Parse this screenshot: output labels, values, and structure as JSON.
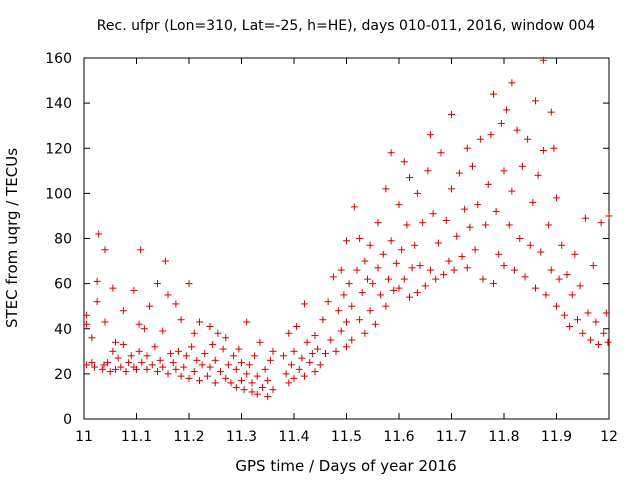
{
  "chart_data": {
    "type": "scatter",
    "title": "Rec. ufpr (Lon=310, Lat=-25, h=HE), days 010-011, 2016, window 004",
    "xlabel": "GPS time / Days of year 2016",
    "ylabel": "STEC from uqrg / TECUs",
    "xlim": [
      11,
      12
    ],
    "ylim": [
      0,
      160
    ],
    "xticks": [
      11,
      11.1,
      11.2,
      11.3,
      11.4,
      11.5,
      11.6,
      11.7,
      11.8,
      11.9,
      12
    ],
    "xtick_labels": [
      "11",
      "11.1",
      "11.2",
      "11.3",
      "11.4",
      "11.5",
      "11.6",
      "11.7",
      "11.8",
      "11.9",
      "12"
    ],
    "yticks": [
      0,
      20,
      40,
      60,
      80,
      100,
      120,
      140,
      160
    ],
    "ytick_labels": [
      "0",
      "20",
      "40",
      "60",
      "80",
      "100",
      "120",
      "140",
      "160"
    ],
    "grid": false,
    "marker": "+",
    "marker_color": "#d40000",
    "series": [
      {
        "name": "STEC",
        "points": [
          [
            11.005,
            24
          ],
          [
            11.005,
            46
          ],
          [
            11.005,
            42
          ],
          [
            11.015,
            25
          ],
          [
            11.015,
            36
          ],
          [
            11.02,
            23
          ],
          [
            11.025,
            52
          ],
          [
            11.025,
            61
          ],
          [
            11.028,
            82
          ],
          [
            11.035,
            22
          ],
          [
            11.038,
            24
          ],
          [
            11.04,
            43
          ],
          [
            11.04,
            75
          ],
          [
            11.045,
            25
          ],
          [
            11.05,
            21
          ],
          [
            11.055,
            30
          ],
          [
            11.055,
            58
          ],
          [
            11.06,
            22
          ],
          [
            11.06,
            34
          ],
          [
            11.065,
            27
          ],
          [
            11.07,
            23
          ],
          [
            11.075,
            33
          ],
          [
            11.075,
            48
          ],
          [
            11.08,
            21
          ],
          [
            11.085,
            25
          ],
          [
            11.09,
            28
          ],
          [
            11.095,
            23
          ],
          [
            11.095,
            57
          ],
          [
            11.1,
            22
          ],
          [
            11.105,
            30
          ],
          [
            11.105,
            42
          ],
          [
            11.108,
            75
          ],
          [
            11.11,
            25
          ],
          [
            11.115,
            40
          ],
          [
            11.12,
            22
          ],
          [
            11.12,
            28
          ],
          [
            11.125,
            50
          ],
          [
            11.13,
            24
          ],
          [
            11.135,
            32
          ],
          [
            11.14,
            21
          ],
          [
            11.14,
            60
          ],
          [
            11.145,
            26
          ],
          [
            11.15,
            23
          ],
          [
            11.15,
            39
          ],
          [
            11.155,
            70
          ],
          [
            11.16,
            20
          ],
          [
            11.16,
            55
          ],
          [
            11.165,
            29
          ],
          [
            11.17,
            25
          ],
          [
            11.175,
            22
          ],
          [
            11.175,
            51
          ],
          [
            11.18,
            30
          ],
          [
            11.185,
            19
          ],
          [
            11.185,
            44
          ],
          [
            11.19,
            23
          ],
          [
            11.195,
            28
          ],
          [
            11.2,
            18
          ],
          [
            11.2,
            60
          ],
          [
            11.205,
            32
          ],
          [
            11.21,
            21
          ],
          [
            11.21,
            38
          ],
          [
            11.215,
            26
          ],
          [
            11.22,
            17
          ],
          [
            11.22,
            43
          ],
          [
            11.225,
            24
          ],
          [
            11.23,
            29
          ],
          [
            11.235,
            19
          ],
          [
            11.24,
            41
          ],
          [
            11.24,
            23
          ],
          [
            11.245,
            33
          ],
          [
            11.25,
            16
          ],
          [
            11.25,
            26
          ],
          [
            11.255,
            38
          ],
          [
            11.26,
            21
          ],
          [
            11.265,
            31
          ],
          [
            11.27,
            18
          ],
          [
            11.27,
            36
          ],
          [
            11.275,
            24
          ],
          [
            11.28,
            16
          ],
          [
            11.285,
            28
          ],
          [
            11.29,
            14
          ],
          [
            11.29,
            22
          ],
          [
            11.295,
            31
          ],
          [
            11.3,
            17
          ],
          [
            11.3,
            25
          ],
          [
            11.305,
            13
          ],
          [
            11.31,
            20
          ],
          [
            11.31,
            43
          ],
          [
            11.315,
            24
          ],
          [
            11.32,
            12
          ],
          [
            11.32,
            16
          ],
          [
            11.325,
            28
          ],
          [
            11.33,
            11
          ],
          [
            11.33,
            19
          ],
          [
            11.335,
            34
          ],
          [
            11.34,
            14
          ],
          [
            11.345,
            22
          ],
          [
            11.35,
            10
          ],
          [
            11.35,
            17
          ],
          [
            11.355,
            26
          ],
          [
            11.36,
            13
          ],
          [
            11.36,
            30
          ],
          [
            11.38,
            28
          ],
          [
            11.385,
            20
          ],
          [
            11.39,
            16
          ],
          [
            11.39,
            38
          ],
          [
            11.395,
            24
          ],
          [
            11.4,
            18
          ],
          [
            11.4,
            30
          ],
          [
            11.405,
            41
          ],
          [
            11.41,
            22
          ],
          [
            11.415,
            27
          ],
          [
            11.42,
            19
          ],
          [
            11.42,
            51
          ],
          [
            11.425,
            34
          ],
          [
            11.43,
            25
          ],
          [
            11.435,
            29
          ],
          [
            11.44,
            21
          ],
          [
            11.44,
            37
          ],
          [
            11.445,
            31
          ],
          [
            11.45,
            24
          ],
          [
            11.455,
            44
          ],
          [
            11.46,
            29
          ],
          [
            11.465,
            52
          ],
          [
            11.47,
            35
          ],
          [
            11.475,
            63
          ],
          [
            11.48,
            30
          ],
          [
            11.485,
            48
          ],
          [
            11.49,
            39
          ],
          [
            11.49,
            66
          ],
          [
            11.495,
            55
          ],
          [
            11.5,
            32
          ],
          [
            11.5,
            43
          ],
          [
            11.5,
            79
          ],
          [
            11.505,
            60
          ],
          [
            11.51,
            35
          ],
          [
            11.51,
            50
          ],
          [
            11.515,
            94
          ],
          [
            11.52,
            66
          ],
          [
            11.525,
            44
          ],
          [
            11.525,
            80
          ],
          [
            11.53,
            56
          ],
          [
            11.535,
            38
          ],
          [
            11.535,
            70
          ],
          [
            11.54,
            62
          ],
          [
            11.545,
            48
          ],
          [
            11.545,
            77
          ],
          [
            11.55,
            60
          ],
          [
            11.555,
            42
          ],
          [
            11.56,
            67
          ],
          [
            11.56,
            87
          ],
          [
            11.565,
            55
          ],
          [
            11.57,
            73
          ],
          [
            11.575,
            50
          ],
          [
            11.575,
            102
          ],
          [
            11.58,
            62
          ],
          [
            11.585,
            79
          ],
          [
            11.585,
            118
          ],
          [
            11.59,
            57
          ],
          [
            11.595,
            69
          ],
          [
            11.6,
            95
          ],
          [
            11.6,
            58
          ],
          [
            11.605,
            75
          ],
          [
            11.61,
            62
          ],
          [
            11.61,
            114
          ],
          [
            11.615,
            86
          ],
          [
            11.62,
            54
          ],
          [
            11.62,
            107
          ],
          [
            11.625,
            67
          ],
          [
            11.63,
            77
          ],
          [
            11.635,
            56
          ],
          [
            11.635,
            100
          ],
          [
            11.64,
            68
          ],
          [
            11.645,
            87
          ],
          [
            11.65,
            59
          ],
          [
            11.655,
            110
          ],
          [
            11.66,
            66
          ],
          [
            11.66,
            126
          ],
          [
            11.665,
            91
          ],
          [
            11.67,
            62
          ],
          [
            11.675,
            78
          ],
          [
            11.68,
            118
          ],
          [
            11.685,
            64
          ],
          [
            11.69,
            88
          ],
          [
            11.695,
            70
          ],
          [
            11.7,
            135
          ],
          [
            11.7,
            102
          ],
          [
            11.705,
            66
          ],
          [
            11.71,
            81
          ],
          [
            11.715,
            109
          ],
          [
            11.72,
            72
          ],
          [
            11.725,
            93
          ],
          [
            11.73,
            120
          ],
          [
            11.73,
            67
          ],
          [
            11.735,
            85
          ],
          [
            11.74,
            112
          ],
          [
            11.745,
            75
          ],
          [
            11.75,
            95
          ],
          [
            11.755,
            124
          ],
          [
            11.76,
            62
          ],
          [
            11.765,
            86
          ],
          [
            11.77,
            104
          ],
          [
            11.775,
            126
          ],
          [
            11.78,
            60
          ],
          [
            11.78,
            144
          ],
          [
            11.785,
            92
          ],
          [
            11.79,
            73
          ],
          [
            11.795,
            131
          ],
          [
            11.8,
            68
          ],
          [
            11.8,
            110
          ],
          [
            11.805,
            137
          ],
          [
            11.81,
            86
          ],
          [
            11.815,
            149
          ],
          [
            11.815,
            101
          ],
          [
            11.82,
            66
          ],
          [
            11.825,
            128
          ],
          [
            11.83,
            80
          ],
          [
            11.835,
            112
          ],
          [
            11.84,
            63
          ],
          [
            11.845,
            124
          ],
          [
            11.85,
            77
          ],
          [
            11.855,
            96
          ],
          [
            11.86,
            141
          ],
          [
            11.86,
            58
          ],
          [
            11.865,
            108
          ],
          [
            11.87,
            74
          ],
          [
            11.875,
            159
          ],
          [
            11.875,
            119
          ],
          [
            11.88,
            55
          ],
          [
            11.885,
            86
          ],
          [
            11.89,
            136
          ],
          [
            11.89,
            66
          ],
          [
            11.895,
            120
          ],
          [
            11.9,
            50
          ],
          [
            11.9,
            98
          ],
          [
            11.905,
            62
          ],
          [
            11.91,
            77
          ],
          [
            11.915,
            46
          ],
          [
            11.92,
            64
          ],
          [
            11.925,
            41
          ],
          [
            11.93,
            55
          ],
          [
            11.935,
            73
          ],
          [
            11.94,
            44
          ],
          [
            11.945,
            59
          ],
          [
            11.95,
            38
          ],
          [
            11.955,
            89
          ],
          [
            11.96,
            47
          ],
          [
            11.965,
            35
          ],
          [
            11.97,
            68
          ],
          [
            11.975,
            43
          ],
          [
            11.98,
            33
          ],
          [
            11.985,
            87
          ],
          [
            11.99,
            38
          ],
          [
            11.995,
            47
          ],
          [
            11.998,
            34
          ],
          [
            12.0,
            90
          ]
        ]
      }
    ]
  }
}
